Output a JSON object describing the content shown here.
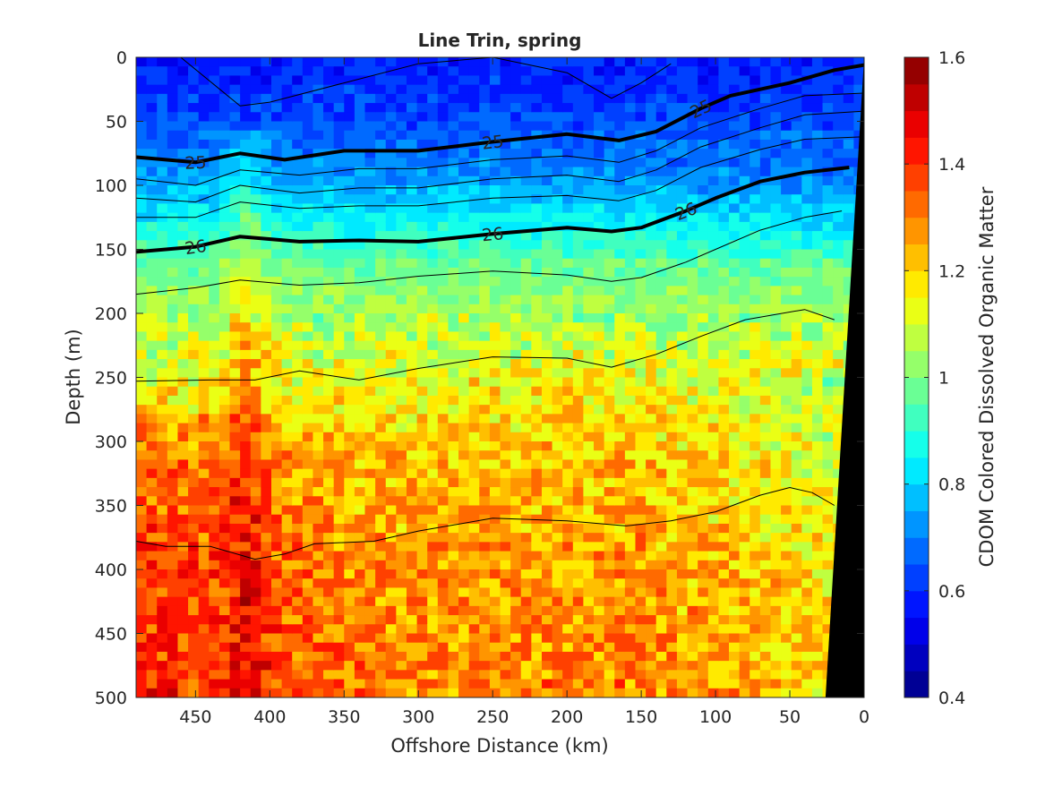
{
  "chart_data": {
    "type": "heatmap",
    "title": "Line Trin, spring",
    "xlabel": "Offshore Distance (km)",
    "ylabel": "Depth (m)",
    "colorbar_label": "CDOM Colored Dissolved Organic Matter",
    "xlim": [
      490,
      0
    ],
    "ylim": [
      0,
      500
    ],
    "x_direction": "reversed",
    "y_direction": "reversed",
    "x_ticks": [
      450,
      400,
      350,
      300,
      250,
      200,
      150,
      100,
      50,
      0
    ],
    "y_ticks": [
      0,
      50,
      100,
      150,
      200,
      250,
      300,
      350,
      400,
      450,
      500
    ],
    "colorbar": {
      "min": 0.4,
      "max": 1.6,
      "levels": 24,
      "ticks": [
        0.4,
        0.6,
        0.8,
        1,
        1.2,
        1.4,
        1.6
      ],
      "colormap": "jet"
    },
    "field_profile": [
      {
        "depth": 0,
        "value": 0.58
      },
      {
        "depth": 40,
        "value": 0.62
      },
      {
        "depth": 90,
        "value": 0.72
      },
      {
        "depth": 130,
        "value": 0.86
      },
      {
        "depth": 165,
        "value": 0.98
      },
      {
        "depth": 210,
        "value": 1.06
      },
      {
        "depth": 260,
        "value": 1.16
      },
      {
        "depth": 320,
        "value": 1.22
      },
      {
        "depth": 400,
        "value": 1.27
      },
      {
        "depth": 500,
        "value": 1.3
      }
    ],
    "features": [
      {
        "name": "high-cdom plume",
        "x": 415,
        "depth_from": 60,
        "depth_to": 500,
        "value": 1.35
      },
      {
        "name": "deep offshore maximum",
        "x": 470,
        "depth_from": 300,
        "depth_to": 500,
        "value": 1.42
      }
    ],
    "isopycnals": [
      {
        "label": "",
        "bold": false,
        "points": [
          [
            460,
            0
          ],
          [
            420,
            38
          ],
          [
            400,
            35
          ],
          [
            350,
            20
          ],
          [
            300,
            5
          ],
          [
            250,
            0
          ],
          [
            200,
            12
          ],
          [
            170,
            32
          ],
          [
            150,
            20
          ],
          [
            130,
            5
          ]
        ]
      },
      {
        "label": "25",
        "bold": true,
        "points": [
          [
            490,
            78
          ],
          [
            450,
            82
          ],
          [
            420,
            75
          ],
          [
            390,
            80
          ],
          [
            350,
            73
          ],
          [
            300,
            73
          ],
          [
            250,
            66
          ],
          [
            200,
            60
          ],
          [
            165,
            65
          ],
          [
            140,
            58
          ],
          [
            110,
            40
          ],
          [
            90,
            30
          ],
          [
            50,
            20
          ],
          [
            20,
            10
          ],
          [
            0,
            6
          ]
        ]
      },
      {
        "label": "",
        "bold": false,
        "points": [
          [
            490,
            95
          ],
          [
            450,
            100
          ],
          [
            420,
            88
          ],
          [
            380,
            92
          ],
          [
            340,
            87
          ],
          [
            300,
            87
          ],
          [
            250,
            80
          ],
          [
            200,
            77
          ],
          [
            165,
            82
          ],
          [
            140,
            73
          ],
          [
            110,
            55
          ],
          [
            70,
            40
          ],
          [
            40,
            30
          ],
          [
            0,
            28
          ]
        ]
      },
      {
        "label": "",
        "bold": false,
        "points": [
          [
            490,
            110
          ],
          [
            450,
            113
          ],
          [
            420,
            100
          ],
          [
            380,
            106
          ],
          [
            340,
            102
          ],
          [
            300,
            102
          ],
          [
            250,
            95
          ],
          [
            200,
            92
          ],
          [
            165,
            97
          ],
          [
            140,
            88
          ],
          [
            110,
            70
          ],
          [
            70,
            55
          ],
          [
            40,
            45
          ],
          [
            0,
            42
          ]
        ]
      },
      {
        "label": "",
        "bold": false,
        "points": [
          [
            490,
            125
          ],
          [
            450,
            125
          ],
          [
            420,
            113
          ],
          [
            380,
            118
          ],
          [
            340,
            116
          ],
          [
            300,
            116
          ],
          [
            250,
            110
          ],
          [
            200,
            108
          ],
          [
            165,
            112
          ],
          [
            140,
            104
          ],
          [
            110,
            86
          ],
          [
            70,
            72
          ],
          [
            40,
            64
          ],
          [
            0,
            62
          ]
        ]
      },
      {
        "label": "26",
        "bold": true,
        "points": [
          [
            490,
            152
          ],
          [
            450,
            148
          ],
          [
            420,
            140
          ],
          [
            380,
            144
          ],
          [
            340,
            143
          ],
          [
            300,
            144
          ],
          [
            250,
            138
          ],
          [
            200,
            133
          ],
          [
            170,
            136
          ],
          [
            150,
            133
          ],
          [
            120,
            120
          ],
          [
            100,
            110
          ],
          [
            70,
            97
          ],
          [
            40,
            90
          ],
          [
            10,
            86
          ]
        ]
      },
      {
        "label": "",
        "bold": false,
        "points": [
          [
            490,
            185
          ],
          [
            450,
            180
          ],
          [
            420,
            174
          ],
          [
            380,
            178
          ],
          [
            340,
            176
          ],
          [
            300,
            171
          ],
          [
            250,
            167
          ],
          [
            200,
            170
          ],
          [
            170,
            175
          ],
          [
            150,
            172
          ],
          [
            120,
            160
          ],
          [
            100,
            150
          ],
          [
            70,
            135
          ],
          [
            40,
            125
          ],
          [
            15,
            120
          ]
        ]
      },
      {
        "label": "",
        "bold": false,
        "points": [
          [
            490,
            253
          ],
          [
            440,
            252
          ],
          [
            410,
            252
          ],
          [
            380,
            245
          ],
          [
            340,
            252
          ],
          [
            300,
            243
          ],
          [
            250,
            234
          ],
          [
            200,
            235
          ],
          [
            170,
            242
          ],
          [
            140,
            232
          ],
          [
            110,
            218
          ],
          [
            80,
            205
          ],
          [
            40,
            197
          ],
          [
            20,
            205
          ]
        ]
      },
      {
        "label": "",
        "bold": false,
        "points": [
          [
            490,
            378
          ],
          [
            470,
            382
          ],
          [
            440,
            382
          ],
          [
            410,
            392
          ],
          [
            390,
            388
          ],
          [
            370,
            380
          ],
          [
            330,
            378
          ],
          [
            300,
            370
          ],
          [
            250,
            360
          ],
          [
            200,
            362
          ],
          [
            160,
            366
          ],
          [
            130,
            362
          ],
          [
            100,
            355
          ],
          [
            70,
            342
          ],
          [
            50,
            336
          ],
          [
            35,
            340
          ],
          [
            20,
            350
          ]
        ]
      }
    ],
    "bathymetry": {
      "label": "",
      "top_x": 0,
      "top_depth": 0,
      "bottom_x": 26,
      "bottom_depth": 500
    }
  }
}
